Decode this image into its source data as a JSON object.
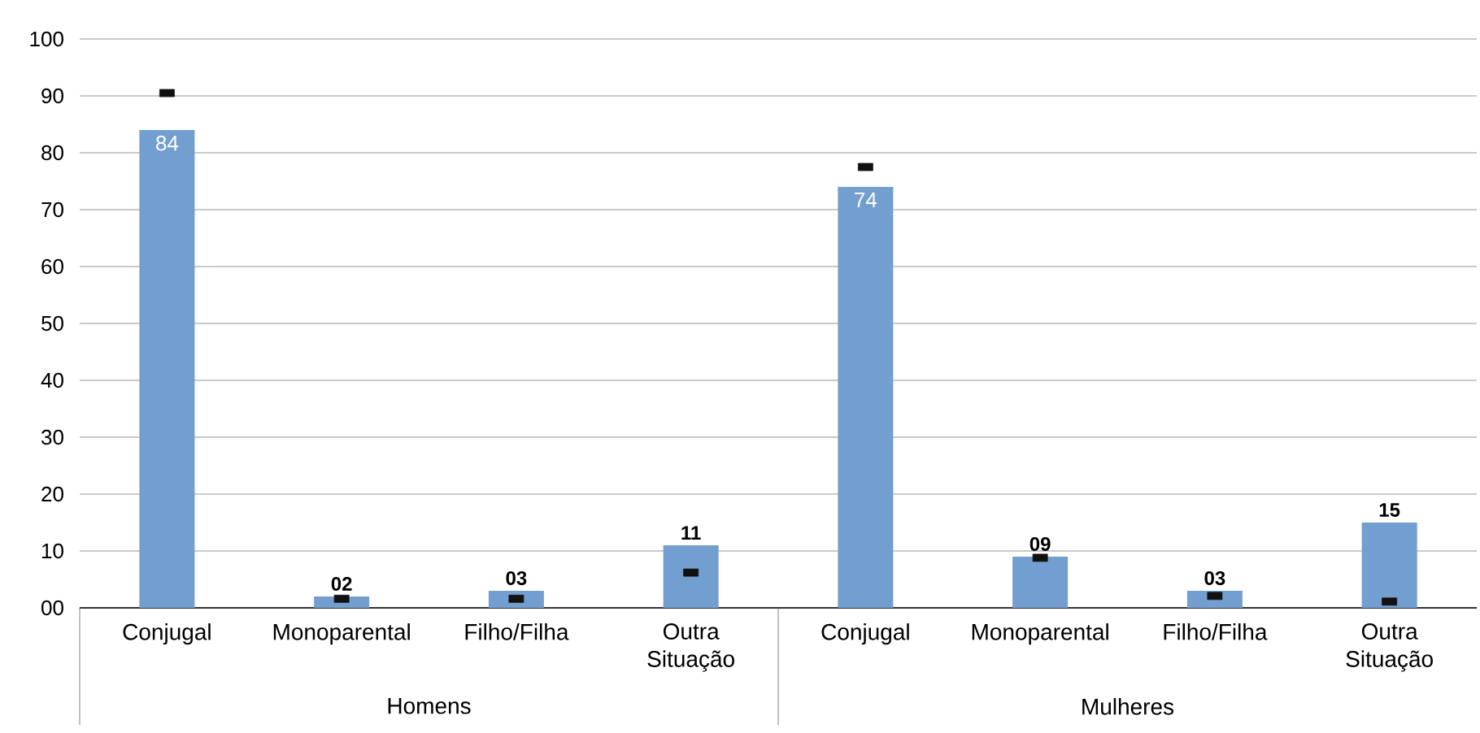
{
  "chart_data": {
    "type": "bar",
    "categories": [
      "Conjugal",
      "Monoparental",
      "Filho/Filha",
      "Outra Situação",
      "Conjugal",
      "Monoparental",
      "Filho/Filha",
      "Outra Situação"
    ],
    "series": [
      {
        "type": "bar",
        "color": "#729fcf",
        "values": [
          84,
          2,
          3,
          11,
          74,
          9,
          3,
          15
        ],
        "value_labels": [
          "84",
          "02",
          "03",
          "11",
          "74",
          "09",
          "03",
          "15"
        ]
      },
      {
        "type": "scatter",
        "color": "#111111",
        "marker": "square",
        "values": [
          90.5,
          1.6,
          1.6,
          6.2,
          77.5,
          8.8,
          2.1,
          1.1
        ]
      }
    ],
    "ylim": [
      0,
      100
    ],
    "yticks": [
      {
        "value": 0,
        "label": "00"
      },
      10,
      20,
      30,
      40,
      50,
      60,
      70,
      80,
      90,
      100
    ],
    "grid": "y",
    "annotations": [
      "Homens",
      "Mulheres"
    ]
  }
}
